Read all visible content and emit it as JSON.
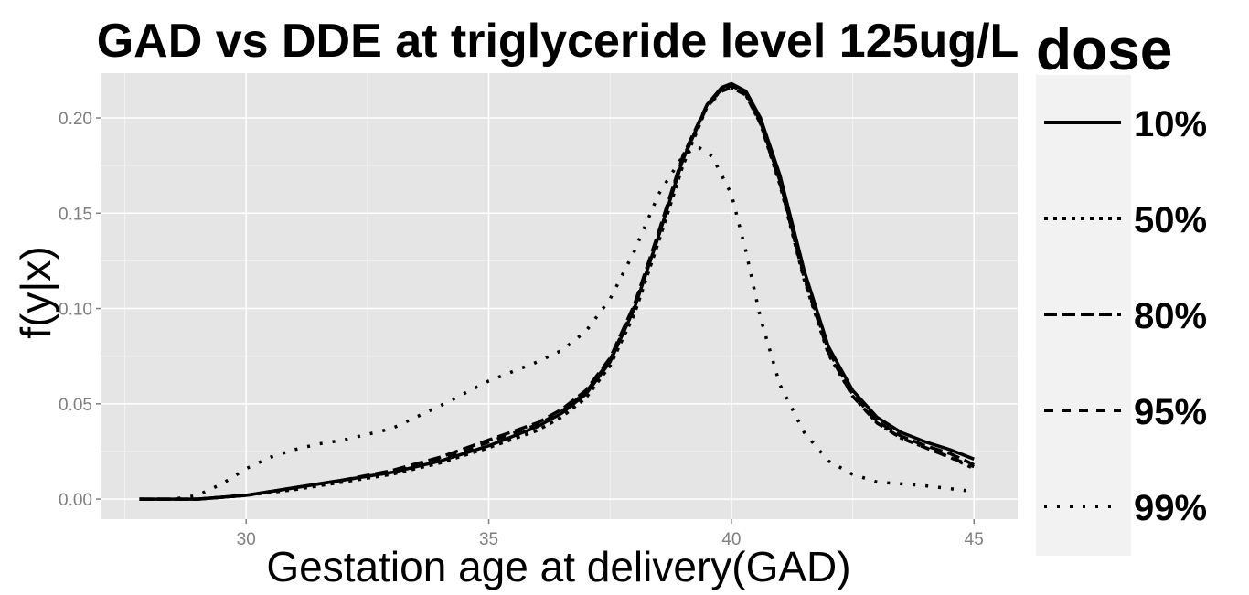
{
  "chart_data": {
    "type": "line",
    "title": "GAD vs DDE at triglyceride level 125ug/L",
    "xlabel": "Gestation age at delivery(GAD)",
    "ylabel": "f(y|x)",
    "xlim": [
      27.0,
      45.9
    ],
    "ylim": [
      -0.0105,
      0.2235
    ],
    "x_ticks": [
      30,
      35,
      40,
      45
    ],
    "y_ticks": [
      0.0,
      0.05,
      0.1,
      0.15,
      0.2
    ],
    "x_tick_labels": [
      "30",
      "35",
      "40",
      "45"
    ],
    "y_tick_labels": [
      "0.00",
      "0.05",
      "0.10",
      "0.15",
      "0.20"
    ],
    "grid": true,
    "legend_title": "dose",
    "legend_position": "right",
    "background_color": "#e5e5e5",
    "series": [
      {
        "name": "10%",
        "linestyle": "solid",
        "x": [
          27.8,
          29.0,
          30.0,
          31.0,
          32.0,
          33.0,
          34.0,
          35.0,
          36.0,
          36.5,
          37.0,
          37.5,
          38.0,
          38.5,
          39.0,
          39.5,
          39.8,
          40.0,
          40.3,
          40.6,
          41.0,
          41.5,
          42.0,
          42.5,
          43.0,
          43.5,
          44.0,
          44.5,
          45.0
        ],
        "y": [
          0.0,
          0.0,
          0.002,
          0.006,
          0.01,
          0.014,
          0.02,
          0.028,
          0.038,
          0.045,
          0.055,
          0.072,
          0.1,
          0.138,
          0.178,
          0.207,
          0.216,
          0.218,
          0.214,
          0.2,
          0.17,
          0.12,
          0.08,
          0.057,
          0.043,
          0.035,
          0.03,
          0.026,
          0.021
        ]
      },
      {
        "name": "50%",
        "linestyle": "dotted",
        "x": [
          27.8,
          29.0,
          30.0,
          31.0,
          32.0,
          33.0,
          34.0,
          35.0,
          36.0,
          36.5,
          37.0,
          37.5,
          38.0,
          38.5,
          39.0,
          39.5,
          39.8,
          40.0,
          40.3,
          40.6,
          41.0,
          41.5,
          42.0,
          42.5,
          43.0,
          43.5,
          44.0,
          44.5,
          45.0
        ],
        "y": [
          0.0,
          0.0,
          0.002,
          0.005,
          0.009,
          0.013,
          0.019,
          0.027,
          0.036,
          0.043,
          0.053,
          0.07,
          0.097,
          0.135,
          0.175,
          0.206,
          0.215,
          0.216,
          0.212,
          0.197,
          0.165,
          0.115,
          0.076,
          0.054,
          0.04,
          0.032,
          0.027,
          0.022,
          0.016
        ]
      },
      {
        "name": "80%",
        "linestyle": "longdash",
        "x": [
          27.8,
          29.0,
          30.0,
          31.0,
          32.0,
          33.0,
          34.0,
          35.0,
          36.0,
          36.5,
          37.0,
          37.5,
          38.0,
          38.5,
          39.0,
          39.5,
          39.8,
          40.0,
          40.3,
          40.6,
          41.0,
          41.5,
          42.0,
          42.5,
          43.0,
          43.5,
          44.0,
          44.5,
          45.0
        ],
        "y": [
          0.0,
          0.0,
          0.002,
          0.006,
          0.01,
          0.015,
          0.022,
          0.031,
          0.04,
          0.047,
          0.057,
          0.074,
          0.102,
          0.14,
          0.18,
          0.207,
          0.215,
          0.217,
          0.213,
          0.198,
          0.167,
          0.117,
          0.078,
          0.055,
          0.041,
          0.033,
          0.028,
          0.024,
          0.018
        ]
      },
      {
        "name": "95%",
        "linestyle": "dashed",
        "x": [
          27.8,
          29.0,
          30.0,
          31.0,
          32.0,
          33.0,
          34.0,
          35.0,
          36.0,
          36.5,
          37.0,
          37.5,
          38.0,
          38.5,
          39.0,
          39.5,
          39.8,
          40.0,
          40.3,
          40.6,
          41.0,
          41.5,
          42.0,
          42.5,
          43.0,
          43.5,
          44.0,
          44.5,
          45.0
        ],
        "y": [
          0.0,
          0.0,
          0.002,
          0.006,
          0.01,
          0.014,
          0.021,
          0.03,
          0.039,
          0.046,
          0.056,
          0.073,
          0.101,
          0.139,
          0.179,
          0.206,
          0.214,
          0.216,
          0.212,
          0.197,
          0.166,
          0.116,
          0.077,
          0.054,
          0.04,
          0.032,
          0.027,
          0.022,
          0.017
        ]
      },
      {
        "name": "99%",
        "linestyle": "dotted-sparse",
        "x": [
          27.8,
          28.5,
          29.0,
          29.5,
          30.0,
          30.5,
          31.0,
          31.5,
          32.0,
          33.0,
          34.0,
          35.0,
          36.0,
          36.5,
          37.0,
          37.5,
          38.0,
          38.5,
          39.0,
          39.3,
          39.6,
          40.0,
          40.3,
          40.6,
          41.0,
          41.5,
          42.0,
          42.5,
          43.0,
          44.0,
          45.0
        ],
        "y": [
          0.0,
          0.0,
          0.002,
          0.008,
          0.016,
          0.022,
          0.026,
          0.029,
          0.031,
          0.037,
          0.049,
          0.062,
          0.072,
          0.078,
          0.088,
          0.105,
          0.13,
          0.16,
          0.18,
          0.185,
          0.18,
          0.16,
          0.13,
          0.095,
          0.06,
          0.035,
          0.02,
          0.013,
          0.009,
          0.007,
          0.004
        ]
      }
    ]
  }
}
